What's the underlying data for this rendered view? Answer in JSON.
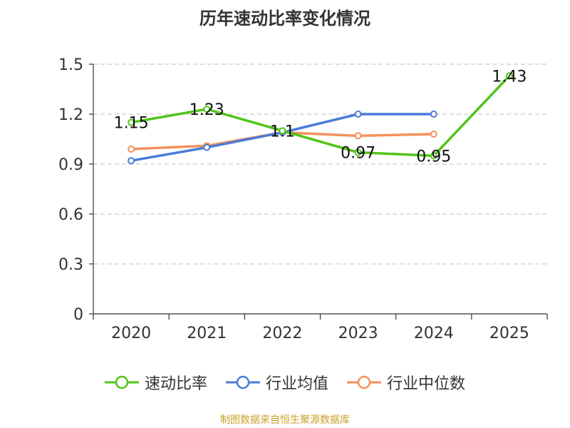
{
  "chart_data": {
    "type": "line",
    "title": "历年速动比率变化情况",
    "categories": [
      "2020",
      "2021",
      "2022",
      "2023",
      "2024",
      "2025"
    ],
    "y_ticks": [
      "0",
      "0.3",
      "0.6",
      "0.9",
      "1.2",
      "1.5"
    ],
    "ylim": [
      0,
      1.5
    ],
    "grid": true,
    "legend_position": "bottom",
    "series": [
      {
        "name": "速动比率",
        "color": "#52c41a",
        "values": [
          1.15,
          1.23,
          1.1,
          0.97,
          0.95,
          1.43
        ],
        "labels": [
          "1.15",
          "1.23",
          "1.1",
          "0.97",
          "0.95",
          "1.43"
        ]
      },
      {
        "name": "行业均值",
        "color": "#4a7bd8",
        "values": [
          0.92,
          1.0,
          1.09,
          1.2,
          1.2,
          null
        ]
      },
      {
        "name": "行业中位数",
        "color": "#f4915b",
        "values": [
          0.99,
          1.01,
          1.09,
          1.07,
          1.08,
          null
        ]
      }
    ]
  },
  "source": "制图数据来自恒生聚源数据库"
}
